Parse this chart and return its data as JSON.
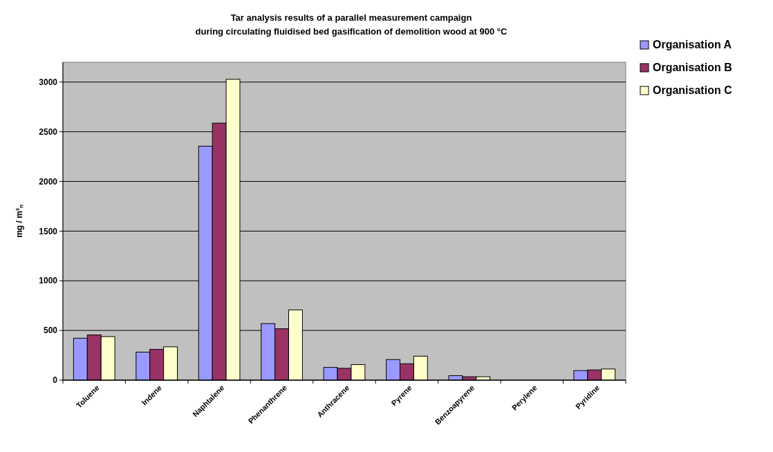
{
  "chart_data": {
    "type": "bar",
    "title": "Tar analysis results of a parallel measurement campaign\nduring circulating fluidised bed gasification of demolition wood at 900 °C",
    "ylabel": "mg / m³ₙ",
    "categories": [
      "Toluene",
      "Indene",
      "Naphtalene",
      "Phenanthrene",
      "Anthracene",
      "Pyrene",
      "Benzoapyrene",
      "Perylene",
      "Pyridine"
    ],
    "series": [
      {
        "name": "Organisation A",
        "color": "#9999ff",
        "values": [
          422,
          282,
          2355,
          569,
          128,
          207,
          45,
          null,
          96
        ]
      },
      {
        "name": "Organisation B",
        "color": "#993366",
        "values": [
          455,
          310,
          2587,
          517,
          119,
          165,
          34,
          null,
          103
        ]
      },
      {
        "name": "Organisation C",
        "color": "#ffffcc",
        "values": [
          438,
          335,
          3028,
          707,
          156,
          241,
          34,
          null,
          112
        ]
      }
    ],
    "ylim": [
      0,
      3200
    ],
    "yticks": [
      0,
      500,
      1000,
      1500,
      2000,
      2500,
      3000
    ],
    "grid": "y",
    "legend": "top right"
  }
}
